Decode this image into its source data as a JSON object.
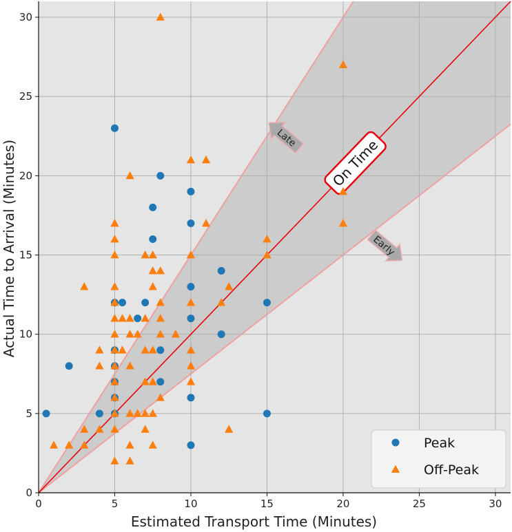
{
  "chart_data": {
    "type": "scatter",
    "title": "",
    "xlabel": "Estimated Transport Time (Minutes)",
    "ylabel": "Actual Time to Arrival (Minutes)",
    "xlim": [
      0,
      31
    ],
    "ylim": [
      0,
      31
    ],
    "xticks": [
      0,
      5,
      10,
      15,
      20,
      25,
      30
    ],
    "yticks": [
      0,
      5,
      10,
      15,
      20,
      25,
      30
    ],
    "grid": true,
    "background": "#e5e5e5",
    "band_color": "#cccccc",
    "band_edge_color": "#f0a0a0",
    "diagonal_color": "#e8000b",
    "band": {
      "upper_slope": 1.5,
      "lower_slope": 0.75
    },
    "annotations": {
      "on_time": "On Time",
      "late": "Late",
      "early": "Early"
    },
    "legend": {
      "position": "bottom-right",
      "entries": [
        {
          "name": "Peak",
          "marker": "circle",
          "color": "#1f77b4"
        },
        {
          "name": "Off-Peak",
          "marker": "triangle",
          "color": "#ff7f0e"
        }
      ]
    },
    "series": [
      {
        "name": "Peak",
        "marker": "circle",
        "color": "#1f77b4",
        "points": [
          [
            0.5,
            5
          ],
          [
            2,
            8
          ],
          [
            4,
            5
          ],
          [
            5,
            23
          ],
          [
            5,
            12
          ],
          [
            5,
            9
          ],
          [
            5,
            8
          ],
          [
            5,
            7
          ],
          [
            5,
            6
          ],
          [
            5,
            5
          ],
          [
            5.5,
            12
          ],
          [
            6.5,
            11
          ],
          [
            7,
            12
          ],
          [
            7.5,
            18
          ],
          [
            7.5,
            16
          ],
          [
            8,
            20
          ],
          [
            8,
            9
          ],
          [
            8,
            7
          ],
          [
            10,
            19
          ],
          [
            10,
            17
          ],
          [
            10,
            13
          ],
          [
            10,
            11
          ],
          [
            10,
            6
          ],
          [
            10,
            3
          ],
          [
            12,
            14
          ],
          [
            12,
            10
          ],
          [
            15,
            12
          ],
          [
            15,
            5
          ]
        ]
      },
      {
        "name": "Off-Peak",
        "marker": "triangle",
        "color": "#ff7f0e",
        "points": [
          [
            1,
            3
          ],
          [
            2,
            3
          ],
          [
            3,
            3
          ],
          [
            3,
            4
          ],
          [
            3,
            13
          ],
          [
            4,
            4
          ],
          [
            4,
            8
          ],
          [
            4,
            9
          ],
          [
            5,
            17
          ],
          [
            5,
            16
          ],
          [
            5,
            15
          ],
          [
            5,
            13
          ],
          [
            5,
            12
          ],
          [
            5,
            11
          ],
          [
            5,
            10
          ],
          [
            5,
            9
          ],
          [
            5,
            8
          ],
          [
            5,
            7
          ],
          [
            5,
            6
          ],
          [
            5,
            5
          ],
          [
            5,
            4
          ],
          [
            5,
            2
          ],
          [
            5.5,
            9
          ],
          [
            5.5,
            11
          ],
          [
            6,
            20
          ],
          [
            6,
            11
          ],
          [
            6,
            10
          ],
          [
            6,
            8
          ],
          [
            6,
            5
          ],
          [
            6,
            3
          ],
          [
            6,
            2
          ],
          [
            6.5,
            10
          ],
          [
            6.5,
            5
          ],
          [
            7,
            15
          ],
          [
            7,
            11
          ],
          [
            7,
            9
          ],
          [
            7,
            7
          ],
          [
            7,
            5
          ],
          [
            7,
            4
          ],
          [
            7.5,
            15
          ],
          [
            7.5,
            14
          ],
          [
            7.5,
            13
          ],
          [
            7.5,
            9
          ],
          [
            7.5,
            7
          ],
          [
            7.5,
            5
          ],
          [
            7.5,
            3
          ],
          [
            8,
            30
          ],
          [
            8,
            14
          ],
          [
            8,
            12
          ],
          [
            8,
            11
          ],
          [
            8,
            10
          ],
          [
            8,
            6
          ],
          [
            9,
            10
          ],
          [
            10,
            21
          ],
          [
            10,
            15
          ],
          [
            10,
            12
          ],
          [
            10,
            9
          ],
          [
            10,
            8
          ],
          [
            10,
            7
          ],
          [
            11,
            21
          ],
          [
            11,
            17
          ],
          [
            12,
            12
          ],
          [
            12.5,
            13
          ],
          [
            12.5,
            4
          ],
          [
            15,
            16
          ],
          [
            15,
            15
          ],
          [
            20,
            27
          ],
          [
            20,
            19
          ],
          [
            20,
            17
          ]
        ]
      }
    ]
  }
}
